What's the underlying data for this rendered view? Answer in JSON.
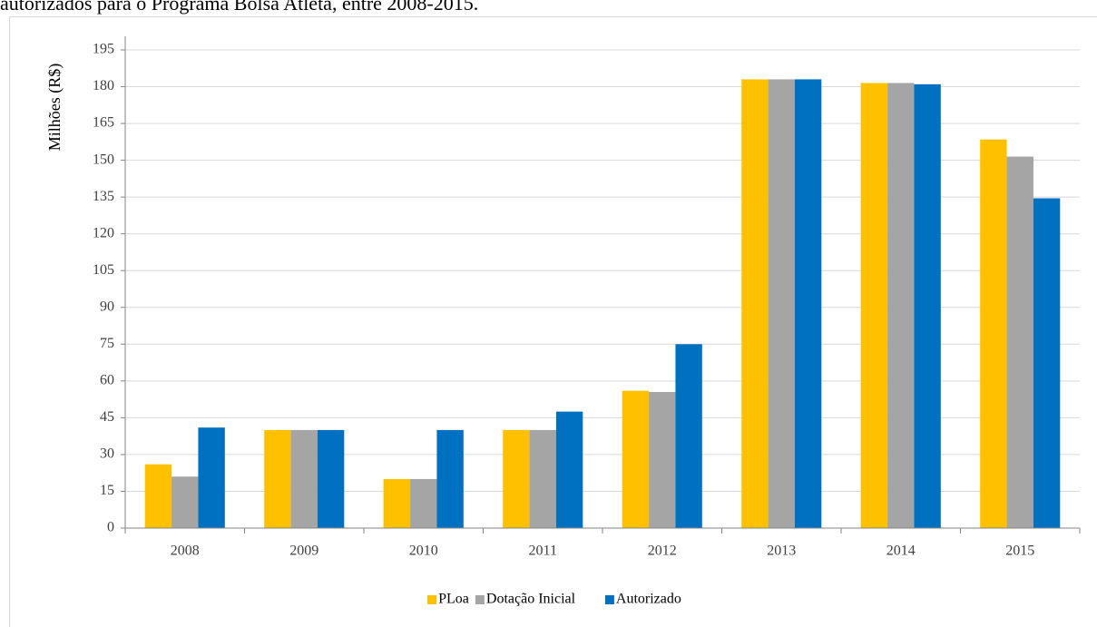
{
  "chart_data": {
    "type": "bar",
    "caption": "autorizados para o Programa Bolsa Atleta, entre 2008-2015.",
    "y_label": "Milhões (R$)",
    "categories": [
      "2008",
      "2009",
      "2010",
      "2011",
      "2012",
      "2013",
      "2014",
      "2015"
    ],
    "series": [
      {
        "name": "PLoa",
        "color": "#ffc000",
        "values": [
          26,
          40,
          20,
          40,
          56,
          183,
          181.5,
          158.5
        ]
      },
      {
        "name": "Dotação Inicial",
        "color": "#a5a5a5",
        "values": [
          21,
          40,
          20,
          40,
          55.5,
          183,
          181.5,
          151.5
        ]
      },
      {
        "name": "Autorizado",
        "color": "#0070c0",
        "values": [
          41,
          40,
          40,
          47.5,
          75,
          183,
          181,
          134.5
        ]
      }
    ],
    "ylim": [
      0,
      195
    ],
    "yticks": [
      0,
      15,
      30,
      45,
      60,
      75,
      90,
      105,
      120,
      135,
      150,
      165,
      180,
      195
    ],
    "grid": true,
    "legend": "bottom"
  }
}
